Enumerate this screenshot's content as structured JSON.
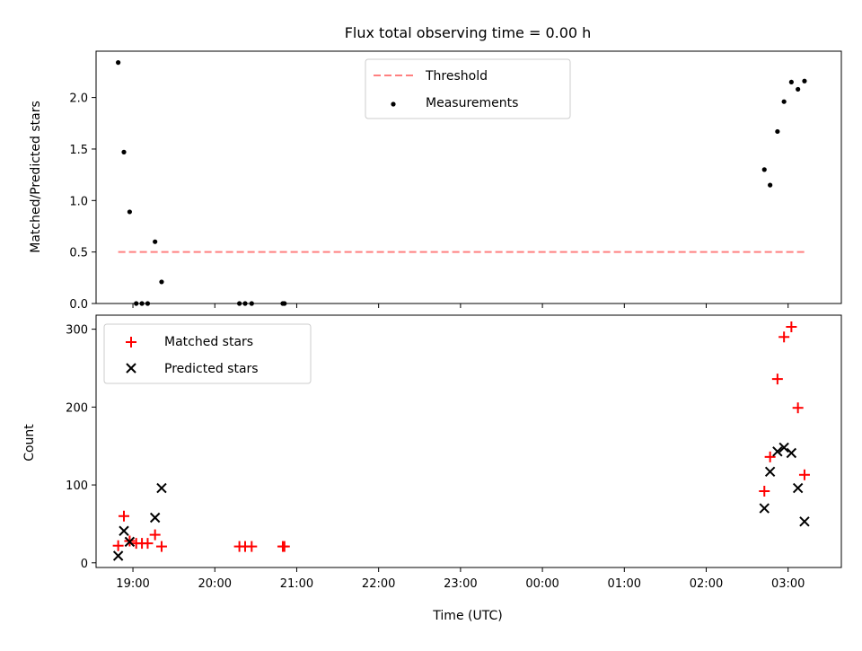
{
  "chart_data": [
    {
      "type": "scatter",
      "title": "Flux total observing time = 0.00 h",
      "xlabel": "",
      "ylabel": "Matched/Predicted stars",
      "x_unit": "hours since 18:00 UTC",
      "xlim": [
        0.55,
        9.65
      ],
      "ylim": [
        0.0,
        2.45
      ],
      "yticks": [
        0.0,
        0.5,
        1.0,
        1.5,
        2.0
      ],
      "ytick_labels": [
        "0.0",
        "0.5",
        "1.0",
        "1.5",
        "2.0"
      ],
      "legend": {
        "location": "upper center",
        "entries": [
          "Threshold",
          "Measurements"
        ]
      },
      "threshold": {
        "name": "Threshold",
        "color": "#ff8080",
        "style": "dashed",
        "x": [
          0.82,
          9.2
        ],
        "y": [
          0.5,
          0.5
        ]
      },
      "series": [
        {
          "name": "Measurements",
          "marker": "dot",
          "color": "#000000",
          "points": [
            [
              0.82,
              2.34
            ],
            [
              0.89,
              1.47
            ],
            [
              0.96,
              0.89
            ],
            [
              1.04,
              0.0
            ],
            [
              1.11,
              0.0
            ],
            [
              1.18,
              0.0
            ],
            [
              1.27,
              0.6
            ],
            [
              1.35,
              0.21
            ],
            [
              2.3,
              0.0
            ],
            [
              2.37,
              0.0
            ],
            [
              2.45,
              0.0
            ],
            [
              2.83,
              0.0
            ],
            [
              2.85,
              0.0
            ],
            [
              8.71,
              1.3
            ],
            [
              8.78,
              1.15
            ],
            [
              8.87,
              1.67
            ],
            [
              8.95,
              1.96
            ],
            [
              9.04,
              2.15
            ],
            [
              9.12,
              2.08
            ],
            [
              9.2,
              2.16
            ]
          ]
        }
      ]
    },
    {
      "type": "scatter",
      "title": "",
      "xlabel": "Time (UTC)",
      "ylabel": "Count",
      "x_unit": "hours since 18:00 UTC",
      "xlim": [
        0.55,
        9.65
      ],
      "ylim": [
        -6,
        318
      ],
      "yticks": [
        0,
        100,
        200,
        300
      ],
      "ytick_labels": [
        "0",
        "100",
        "200",
        "300"
      ],
      "xticks": [
        1,
        2,
        3,
        4,
        5,
        6,
        7,
        8,
        9
      ],
      "xtick_labels": [
        "19:00",
        "20:00",
        "21:00",
        "22:00",
        "23:00",
        "00:00",
        "01:00",
        "02:00",
        "03:00"
      ],
      "legend": {
        "location": "upper left",
        "entries": [
          "Matched stars",
          "Predicted stars"
        ]
      },
      "series": [
        {
          "name": "Matched stars",
          "marker": "plus",
          "color": "#ff0000",
          "points": [
            [
              0.82,
              22
            ],
            [
              0.89,
              60
            ],
            [
              0.96,
              28
            ],
            [
              1.04,
              25
            ],
            [
              1.11,
              25
            ],
            [
              1.18,
              25
            ],
            [
              1.27,
              36
            ],
            [
              1.35,
              21
            ],
            [
              2.3,
              21
            ],
            [
              2.37,
              21
            ],
            [
              2.45,
              21
            ],
            [
              2.83,
              21
            ],
            [
              2.85,
              21
            ],
            [
              8.71,
              92
            ],
            [
              8.78,
              136
            ],
            [
              8.87,
              236
            ],
            [
              8.95,
              290
            ],
            [
              9.04,
              303
            ],
            [
              9.12,
              199
            ],
            [
              9.2,
              113
            ]
          ]
        },
        {
          "name": "Predicted stars",
          "marker": "x",
          "color": "#000000",
          "points": [
            [
              0.82,
              9
            ],
            [
              0.89,
              41
            ],
            [
              0.96,
              27
            ],
            [
              1.27,
              58
            ],
            [
              1.35,
              96
            ],
            [
              8.71,
              70
            ],
            [
              8.78,
              117
            ],
            [
              8.87,
              143
            ],
            [
              8.95,
              148
            ],
            [
              9.04,
              141
            ],
            [
              9.12,
              96
            ],
            [
              9.2,
              53
            ]
          ]
        }
      ]
    }
  ]
}
